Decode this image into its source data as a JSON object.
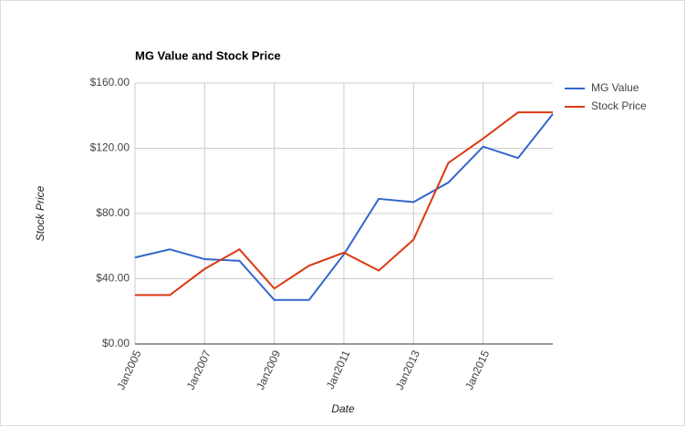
{
  "chart_data": {
    "type": "line",
    "title": "MG Value and Stock Price",
    "x_label": "Date",
    "y_label": "Stock Price",
    "categories": [
      "Jan2005",
      null,
      "Jan2007",
      null,
      "Jan2009",
      null,
      "Jan2011",
      null,
      "Jan2013",
      null,
      "Jan2015",
      null,
      null
    ],
    "series": [
      {
        "name": "MG Value",
        "color": "#3366cc",
        "values": [
          53,
          58,
          52,
          51,
          27,
          27,
          55,
          89,
          87,
          99,
          121,
          114,
          141
        ]
      },
      {
        "name": "Stock Price",
        "color": "#dc3912",
        "values": [
          30,
          30,
          46,
          58,
          34,
          48,
          56,
          45,
          64,
          111,
          126,
          142,
          142
        ]
      }
    ],
    "ylim": [
      0,
      160
    ],
    "yticks": [
      {
        "value": 0,
        "label": "$0.00"
      },
      {
        "value": 40,
        "label": "$40.00"
      },
      {
        "value": 80,
        "label": "$80.00"
      },
      {
        "value": 120,
        "label": "$120.00"
      },
      {
        "value": 160,
        "label": "$160.00"
      }
    ],
    "grid": true,
    "legend": "right"
  }
}
